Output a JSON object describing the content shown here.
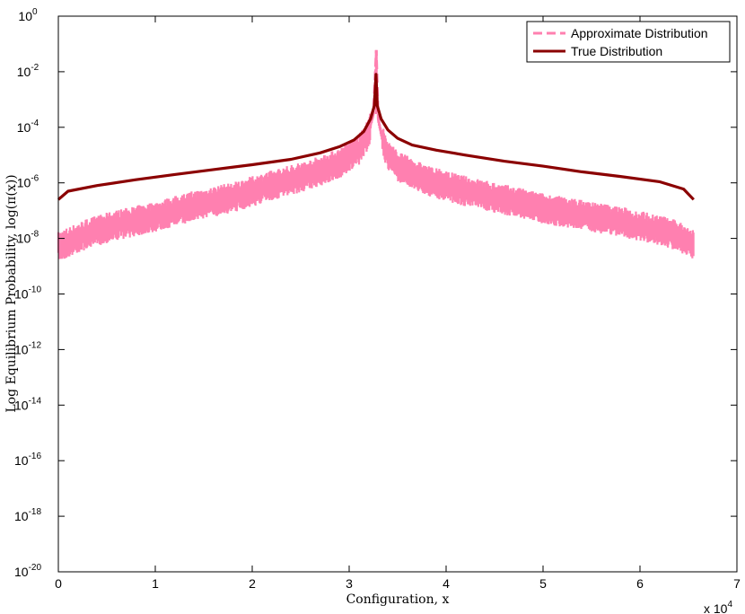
{
  "chart_data": {
    "type": "line",
    "title": "",
    "xlabel": "Configuration, x",
    "ylabel": "Log Equilibrium Probability, log(π(x))",
    "x_multiplier_label": "x 10",
    "x_multiplier_exponent": "4",
    "xlim": [
      0,
      70000
    ],
    "ylim": [
      1e-20,
      1
    ],
    "y_scale": "log",
    "x_ticks": [
      {
        "value": 0,
        "label": "0"
      },
      {
        "value": 10000,
        "label": "1"
      },
      {
        "value": 20000,
        "label": "2"
      },
      {
        "value": 30000,
        "label": "3"
      },
      {
        "value": 40000,
        "label": "4"
      },
      {
        "value": 50000,
        "label": "5"
      },
      {
        "value": 60000,
        "label": "6"
      },
      {
        "value": 70000,
        "label": "7"
      }
    ],
    "y_ticks": [
      {
        "exp": 0,
        "base": "10",
        "sup": "0"
      },
      {
        "exp": -2,
        "base": "10",
        "sup": "-2"
      },
      {
        "exp": -4,
        "base": "10",
        "sup": "-4"
      },
      {
        "exp": -6,
        "base": "10",
        "sup": "-6"
      },
      {
        "exp": -8,
        "base": "10",
        "sup": "-8"
      },
      {
        "exp": -10,
        "base": "10",
        "sup": "-10"
      },
      {
        "exp": -12,
        "base": "10",
        "sup": "-12"
      },
      {
        "exp": -14,
        "base": "10",
        "sup": "-14"
      },
      {
        "exp": -16,
        "base": "10",
        "sup": "-16"
      },
      {
        "exp": -18,
        "base": "10",
        "sup": "-18"
      },
      {
        "exp": -20,
        "base": "10",
        "sup": "-20"
      }
    ],
    "grid": false,
    "legend_position": "top-right",
    "series": [
      {
        "name": "Approximate Distribution",
        "color": "#ff80b0",
        "style": "dashed",
        "x": [
          0,
          3000,
          6000,
          10000,
          14000,
          18000,
          22000,
          26000,
          29000,
          31000,
          32000,
          32500,
          32800,
          33000,
          33500,
          34000,
          35000,
          38000,
          42000,
          46000,
          50000,
          54000,
          58000,
          62000,
          64000,
          65535
        ],
        "y": [
          5e-09,
          1.5e-08,
          3e-08,
          6e-08,
          1.5e-07,
          3e-07,
          8e-07,
          2e-06,
          5e-06,
          1.5e-05,
          6e-05,
          0.0003,
          0.06,
          0.0002,
          3e-05,
          1e-05,
          4e-06,
          1.2e-06,
          5e-07,
          2.5e-07,
          1.2e-07,
          7e-08,
          4e-08,
          2e-08,
          1.2e-08,
          6e-09
        ]
      },
      {
        "name": "True Distribution",
        "color": "#8b0000",
        "style": "solid",
        "x": [
          0,
          1000,
          4000,
          8000,
          12000,
          16000,
          20000,
          24000,
          27000,
          29000,
          30500,
          31500,
          32200,
          32600,
          32768,
          32900,
          33300,
          34000,
          35000,
          36500,
          39000,
          42000,
          46000,
          50000,
          54000,
          58000,
          62000,
          64500,
          65535
        ],
        "y": [
          2.5e-07,
          5e-07,
          8e-07,
          1.3e-06,
          2e-06,
          3e-06,
          4.5e-06,
          7e-06,
          1.2e-05,
          2e-05,
          3.5e-05,
          7e-05,
          0.0002,
          0.0006,
          0.008,
          0.0006,
          0.0002,
          8e-05,
          4e-05,
          2.3e-05,
          1.5e-05,
          1e-05,
          6e-06,
          4e-06,
          2.5e-06,
          1.7e-06,
          1.1e-06,
          6e-07,
          2.5e-07
        ]
      }
    ]
  }
}
